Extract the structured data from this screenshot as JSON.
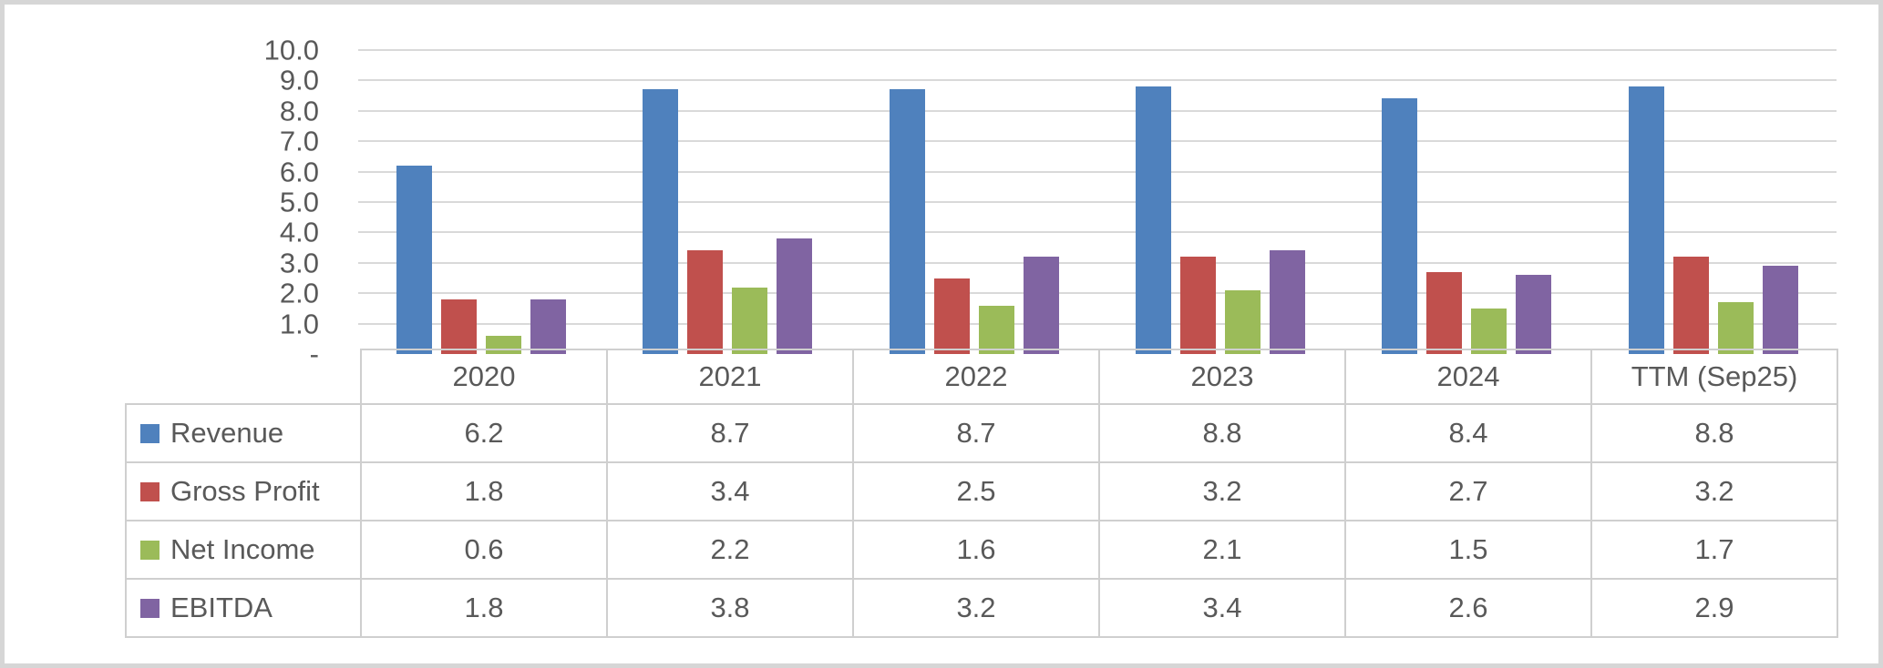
{
  "chart_data": {
    "type": "bar",
    "categories": [
      "2020",
      "2021",
      "2022",
      "2023",
      "2024",
      "TTM (Sep25)"
    ],
    "series": [
      {
        "name": "Revenue",
        "color": "#4F81BD",
        "values": [
          6.2,
          8.7,
          8.7,
          8.8,
          8.4,
          8.8
        ]
      },
      {
        "name": "Gross Profit",
        "color": "#C0504D",
        "values": [
          1.8,
          3.4,
          2.5,
          3.2,
          2.7,
          3.2
        ]
      },
      {
        "name": "Net Income",
        "color": "#9BBB59",
        "values": [
          0.6,
          2.2,
          1.6,
          2.1,
          1.5,
          1.7
        ]
      },
      {
        "name": "EBITDA",
        "color": "#8064A2",
        "values": [
          1.8,
          3.8,
          3.2,
          3.4,
          2.6,
          2.9
        ]
      }
    ],
    "y_axis": {
      "min": 0,
      "max": 10,
      "tick_labels": [
        "10.0",
        "9.0",
        "8.0",
        "7.0",
        "6.0",
        "5.0",
        "4.0",
        "3.0",
        "2.0",
        "1.0",
        "-"
      ]
    },
    "grid": true,
    "legend_position": "data-table-left",
    "value_format": "one-decimal"
  },
  "colors": {
    "gridline": "#d9d9d9",
    "table_border": "#cfcfcf",
    "text": "#595959",
    "frame_border": "#d6d6d6",
    "background": "#ffffff"
  }
}
